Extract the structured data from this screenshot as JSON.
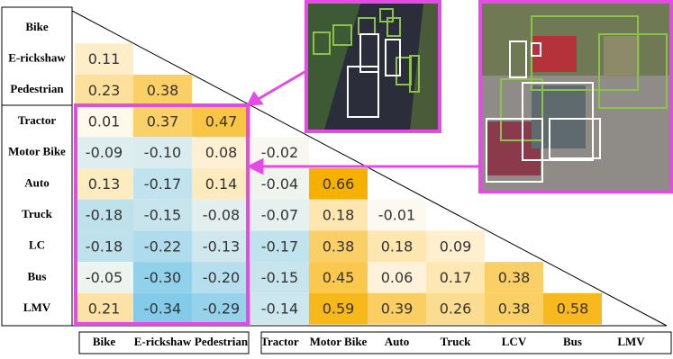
{
  "chart_data": {
    "type": "heatmap",
    "rows": [
      "Bike",
      "E-rickshaw",
      "Pedestrian",
      "Tractor",
      "Motor Bike",
      "Auto",
      "Truck",
      "LC",
      "Bus",
      "LMV"
    ],
    "columns": [
      "Bike",
      "E-rickshaw",
      "Pedestrian",
      "Tractor",
      "Motor Bike",
      "Auto",
      "Truck",
      "LCV",
      "Bus",
      "LMV"
    ],
    "values": [
      [],
      [
        0.11
      ],
      [
        0.23,
        0.38
      ],
      [
        0.01,
        0.37,
        0.47
      ],
      [
        -0.09,
        -0.1,
        0.08,
        -0.02
      ],
      [
        0.13,
        -0.17,
        0.14,
        -0.04,
        0.66
      ],
      [
        -0.18,
        -0.15,
        -0.08,
        -0.07,
        0.18,
        -0.01
      ],
      [
        -0.18,
        -0.22,
        -0.13,
        -0.17,
        0.38,
        0.18,
        0.09
      ],
      [
        -0.05,
        -0.3,
        -0.2,
        -0.15,
        0.45,
        0.06,
        0.17,
        0.38
      ],
      [
        0.21,
        -0.34,
        -0.29,
        -0.14,
        0.59,
        0.39,
        0.26,
        0.38,
        0.58
      ]
    ],
    "value_labels": [
      [],
      [
        "0.11"
      ],
      [
        "0.23",
        "0.38"
      ],
      [
        "0.01",
        "0.37",
        "0.47"
      ],
      [
        "-0.09",
        "-0.10",
        "0.08",
        "-0.02"
      ],
      [
        "0.13",
        "-0.17",
        "0.14",
        "-0.04",
        "0.66"
      ],
      [
        "-0.18",
        "-0.15",
        "-0.08",
        "-0.07",
        "0.18",
        "-0.01"
      ],
      [
        "-0.18",
        "-0.22",
        "-0.13",
        "-0.17",
        "0.38",
        "0.18",
        "0.09"
      ],
      [
        "-0.05",
        "-0.30",
        "-0.20",
        "-0.15",
        "0.45",
        "0.06",
        "0.17",
        "0.38"
      ],
      [
        "0.21",
        "-0.34",
        "-0.29",
        "-0.14",
        "0.59",
        "0.39",
        "0.26",
        "0.38",
        "0.58"
      ]
    ],
    "colors": {
      "negative": "#0f9fe3",
      "zero": "#fffaf0",
      "positive": "#f6b000"
    }
  }
}
